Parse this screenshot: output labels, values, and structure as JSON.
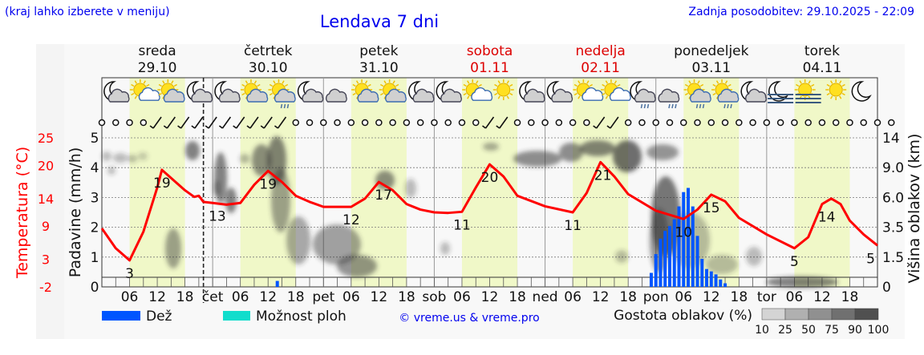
{
  "header": {
    "hint": "(kraj lahko izberete v meniju)",
    "title": "Lendava 7 dni",
    "updated": "Zadnja posodobitev: 29.10.2025 - 22:09"
  },
  "colors": {
    "temperature": "#ff0000",
    "rain": "#0055ff",
    "showers": "#11ddcc",
    "weekend": "#dd0000",
    "link": "#0000ee",
    "day_band": "#f0f8c8"
  },
  "days": [
    {
      "name": "sreda",
      "date": "29.10",
      "weekend": false
    },
    {
      "name": "četrtek",
      "date": "30.10",
      "weekend": false
    },
    {
      "name": "petek",
      "date": "31.10",
      "weekend": false
    },
    {
      "name": "sobota",
      "date": "01.11",
      "weekend": true
    },
    {
      "name": "nedelja",
      "date": "02.11",
      "weekend": true
    },
    {
      "name": "ponedeljek",
      "date": "03.11",
      "weekend": false
    },
    {
      "name": "torek",
      "date": "04.11",
      "weekend": false
    }
  ],
  "weather_icons": [
    "moon-cloud",
    "sun-small-cloud",
    "sun-cloud",
    "moon-cloud",
    "moon-cloud",
    "sun-cloud",
    "sun-cloud-rain",
    "moon-cloud",
    "cloudy",
    "sun-cloud",
    "sun-cloud",
    "moon-cloud",
    "moon-cloud",
    "sun-small-cloud",
    "sun",
    "moon-cloud",
    "moon-cloud",
    "sun-small-cloud",
    "sun-small-cloud",
    "moon-cloud-rain",
    "cloudy-rain",
    "sun-cloud-rain",
    "sun-cloud-rain",
    "moon-cloud",
    "moon-fog",
    "sun-fog",
    "sun",
    "moon"
  ],
  "wind_symbols": "ccccbbbbbbbbbbccccccccccccccbbccccccbbcccccccccccccccccccc",
  "chart_data": {
    "type": "line",
    "title": "Lendava 7 dni",
    "x_unit": "hours since 29.10 00:00",
    "x_range": [
      0,
      168
    ],
    "now_hour": 22,
    "x_tick_labels": {
      "hours": [
        "06",
        "12",
        "18"
      ],
      "midnights": [
        "",
        "čet",
        "pet",
        "sob",
        "ned",
        "pon",
        "tor"
      ]
    },
    "axes": {
      "temperature": {
        "label": "Temperatura (°C)",
        "ticks": [
          "25",
          "20",
          "14",
          "9",
          "3",
          "-2"
        ],
        "range": [
          -2,
          25
        ]
      },
      "precipitation": {
        "label": "Padavine (mm/h)",
        "ticks": [
          "5",
          "4",
          "3",
          "2",
          "1",
          "0"
        ],
        "range": [
          0,
          5
        ]
      },
      "cloud_height": {
        "label": "Višina oblakov (km)",
        "ticks": [
          "14",
          "9.0",
          "6.0",
          "3.5",
          "1.5",
          "0"
        ]
      }
    },
    "temperature": [
      [
        0,
        8.6
      ],
      [
        3,
        5
      ],
      [
        6,
        2.8
      ],
      [
        9,
        8
      ],
      [
        12,
        16
      ],
      [
        13,
        19.2
      ],
      [
        18,
        15.5
      ],
      [
        20,
        14.3
      ],
      [
        21,
        14.5
      ],
      [
        22,
        13.4
      ],
      [
        24,
        13.2
      ],
      [
        27,
        12.9
      ],
      [
        30,
        13.2
      ],
      [
        33,
        16.5
      ],
      [
        36,
        19
      ],
      [
        39,
        17
      ],
      [
        42,
        14.5
      ],
      [
        45,
        13.4
      ],
      [
        48,
        12.5
      ],
      [
        54,
        12.5
      ],
      [
        57,
        14
      ],
      [
        60,
        17
      ],
      [
        63,
        15.5
      ],
      [
        66,
        13
      ],
      [
        69,
        12
      ],
      [
        72,
        11.5
      ],
      [
        75,
        11.4
      ],
      [
        78,
        11.6
      ],
      [
        81,
        16
      ],
      [
        84,
        20.2
      ],
      [
        87,
        18
      ],
      [
        90,
        14.5
      ],
      [
        96,
        12.6
      ],
      [
        102,
        11.5
      ],
      [
        105,
        15
      ],
      [
        108,
        20.6
      ],
      [
        111,
        18
      ],
      [
        114,
        14.8
      ],
      [
        120,
        11.8
      ],
      [
        126,
        10.3
      ],
      [
        129,
        12
      ],
      [
        132,
        14.7
      ],
      [
        135,
        13.5
      ],
      [
        138,
        10.5
      ],
      [
        144,
        7.5
      ],
      [
        150,
        5
      ],
      [
        153,
        7
      ],
      [
        156,
        13
      ],
      [
        158,
        14
      ],
      [
        160,
        13
      ],
      [
        162,
        10
      ],
      [
        165,
        7.5
      ],
      [
        168,
        5.5
      ]
    ],
    "temperature_labels": [
      {
        "hour": 6,
        "text": "3",
        "pos": "below"
      },
      {
        "hour": 13,
        "text": "19",
        "pos": "below"
      },
      {
        "hour": 25,
        "text": "13",
        "pos": "below"
      },
      {
        "hour": 36,
        "text": "19",
        "pos": "below"
      },
      {
        "hour": 54,
        "text": "12",
        "pos": "below"
      },
      {
        "hour": 61,
        "text": "17",
        "pos": "below"
      },
      {
        "hour": 78,
        "text": "11",
        "pos": "below"
      },
      {
        "hour": 84,
        "text": "20",
        "pos": "below"
      },
      {
        "hour": 102,
        "text": "11",
        "pos": "below"
      },
      {
        "hour": 108.5,
        "text": "21",
        "pos": "below"
      },
      {
        "hour": 126,
        "text": "10",
        "pos": "below"
      },
      {
        "hour": 132,
        "text": "15",
        "pos": "below"
      },
      {
        "hour": 150,
        "text": "5",
        "pos": "below"
      },
      {
        "hour": 157,
        "text": "14",
        "pos": "below"
      },
      {
        "hour": 168,
        "text": "5",
        "pos": "below"
      }
    ],
    "rain": [
      [
        38,
        0.2
      ],
      [
        119,
        0.47
      ],
      [
        120,
        1.1
      ],
      [
        121,
        1.62
      ],
      [
        122,
        1.88
      ],
      [
        123,
        2.04
      ],
      [
        124,
        2.27
      ],
      [
        125,
        2.7
      ],
      [
        126,
        3.18
      ],
      [
        127,
        3.32
      ],
      [
        128,
        2.7
      ],
      [
        129,
        1.71
      ],
      [
        130,
        0.94
      ],
      [
        131,
        0.6
      ],
      [
        132,
        0.52
      ],
      [
        133,
        0.42
      ],
      [
        134,
        0.25
      ],
      [
        135,
        0.12
      ]
    ],
    "legend": {
      "rain": "Dež",
      "showers": "Možnost ploh",
      "credit": "© vreme.us & vreme.pro",
      "cloud_density": "Gostota oblakov (%)",
      "density_levels": [
        "10",
        "25",
        "50",
        "75",
        "90",
        "100"
      ]
    }
  }
}
